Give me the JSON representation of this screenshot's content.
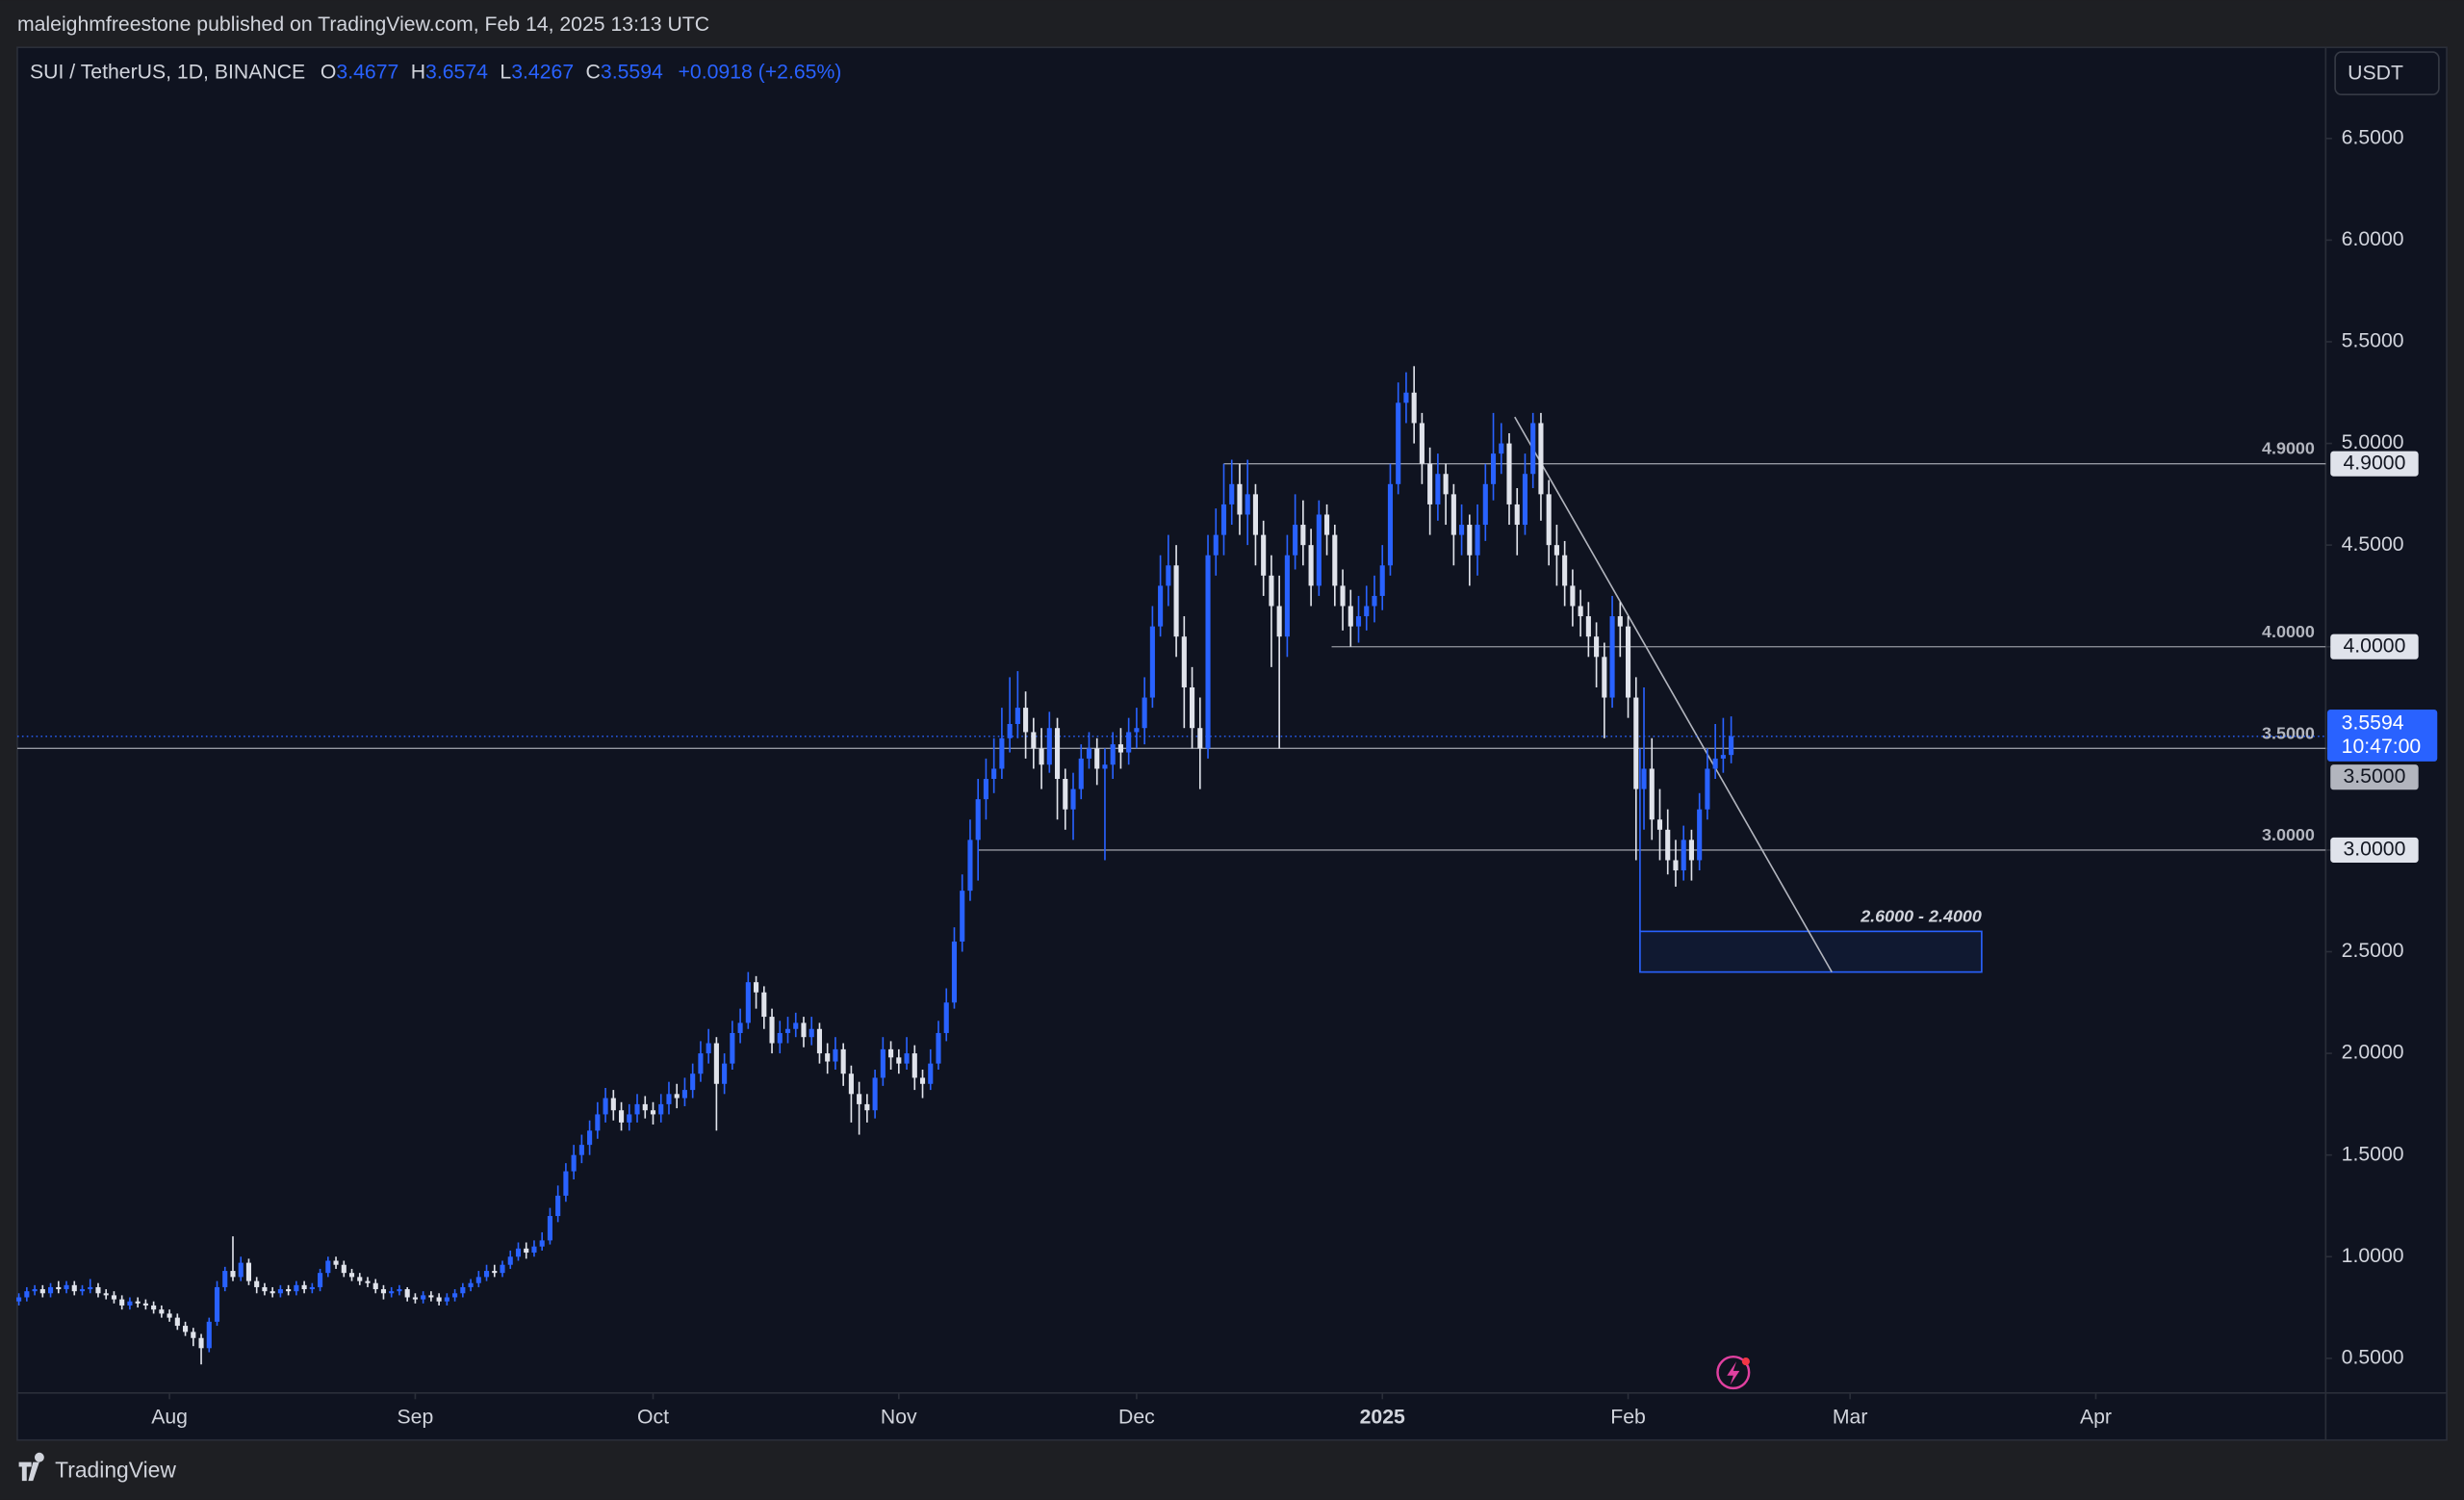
{
  "header": "maleighmfreestone published on TradingView.com, Feb 14, 2025 13:13 UTC",
  "chart_data": {
    "type": "candlestick",
    "symbol": "SUI / TetherUS, 1D, BINANCE",
    "ohlc_labels": [
      "O",
      "H",
      "L",
      "C"
    ],
    "change": "+0.0918 (+2.65%)",
    "currency": "USDT",
    "countdown": "10:47:00",
    "brand": "TradingView",
    "up_color": "#2962ff",
    "down_color": "#e0e3eb",
    "open": [
      0.78,
      0.8,
      0.83,
      0.84,
      0.82,
      0.85,
      0.84,
      0.86,
      0.83,
      0.84,
      0.85,
      0.82,
      0.81,
      0.79,
      0.76,
      0.78,
      0.77,
      0.76,
      0.74,
      0.72,
      0.7,
      0.66,
      0.63,
      0.6,
      0.55,
      0.68,
      0.85,
      0.93,
      0.9,
      0.97,
      0.88,
      0.85,
      0.83,
      0.82,
      0.84,
      0.83,
      0.86,
      0.84,
      0.85,
      0.92,
      0.98,
      0.96,
      0.92,
      0.9,
      0.88,
      0.87,
      0.84,
      0.82,
      0.83,
      0.84,
      0.8,
      0.79,
      0.81,
      0.8,
      0.78,
      0.8,
      0.82,
      0.85,
      0.87,
      0.9,
      0.93,
      0.92,
      0.96,
      1.0,
      1.04,
      1.02,
      1.05,
      1.08,
      1.2,
      1.3,
      1.42,
      1.5,
      1.55,
      1.62,
      1.7,
      1.78,
      1.72,
      1.66,
      1.7,
      1.75,
      1.72,
      1.7,
      1.75,
      1.8,
      1.78,
      1.82,
      1.9,
      2.0,
      2.05,
      1.85,
      1.95,
      2.1,
      2.15,
      2.35,
      2.3,
      2.18,
      2.05,
      2.1,
      2.12,
      2.15,
      2.08,
      2.12,
      2.0,
      1.96,
      2.02,
      1.9,
      1.8,
      1.75,
      1.72,
      1.88,
      2.02,
      1.98,
      1.95,
      2.0,
      1.88,
      1.85,
      1.95,
      2.1,
      2.25,
      2.55,
      2.8,
      3.05,
      3.25,
      3.35,
      3.4,
      3.55,
      3.62,
      3.7,
      3.58,
      3.5,
      3.42,
      3.6,
      3.35,
      3.2,
      3.3,
      3.45,
      3.5,
      3.4,
      3.42,
      3.52,
      3.48,
      3.58,
      3.6,
      3.75,
      4.1,
      4.3,
      4.4,
      4.05,
      3.8,
      3.6,
      3.5,
      4.45,
      4.55,
      4.7,
      4.8,
      4.65,
      4.75,
      4.55,
      4.35,
      4.2,
      4.05,
      4.45,
      4.6,
      4.5,
      4.3,
      4.65,
      4.55,
      4.3,
      4.2,
      4.1,
      4.15,
      4.2,
      4.25,
      4.4,
      4.8,
      5.2,
      5.25,
      5.1,
      4.9,
      4.7,
      4.85,
      4.75,
      4.55,
      4.6,
      4.45,
      4.6,
      4.8,
      4.95,
      5.0,
      4.7,
      4.6,
      4.85,
      5.1,
      4.75,
      4.5,
      4.45,
      4.3,
      4.2,
      4.15,
      4.05,
      3.95,
      3.75,
      4.15,
      4.1,
      3.75,
      3.3,
      3.4,
      3.15,
      3.1,
      2.95,
      2.9,
      3.05,
      2.95,
      3.2,
      3.4,
      3.45,
      3.4677
    ],
    "high": [
      0.82,
      0.85,
      0.86,
      0.86,
      0.87,
      0.88,
      0.88,
      0.88,
      0.86,
      0.89,
      0.87,
      0.84,
      0.83,
      0.81,
      0.8,
      0.8,
      0.79,
      0.78,
      0.76,
      0.74,
      0.72,
      0.68,
      0.65,
      0.62,
      0.7,
      0.88,
      0.95,
      1.1,
      1.0,
      0.99,
      0.9,
      0.87,
      0.85,
      0.86,
      0.86,
      0.88,
      0.88,
      0.87,
      0.94,
      1.0,
      1.0,
      0.98,
      0.94,
      0.92,
      0.9,
      0.89,
      0.86,
      0.85,
      0.86,
      0.85,
      0.82,
      0.83,
      0.83,
      0.82,
      0.82,
      0.84,
      0.87,
      0.89,
      0.93,
      0.96,
      0.96,
      0.98,
      1.03,
      1.07,
      1.07,
      1.08,
      1.12,
      1.24,
      1.35,
      1.46,
      1.55,
      1.6,
      1.67,
      1.76,
      1.83,
      1.82,
      1.76,
      1.75,
      1.8,
      1.79,
      1.76,
      1.8,
      1.86,
      1.85,
      1.88,
      1.95,
      2.06,
      2.12,
      2.08,
      2.0,
      2.16,
      2.22,
      2.4,
      2.38,
      2.33,
      2.22,
      2.16,
      2.18,
      2.2,
      2.18,
      2.18,
      2.15,
      2.05,
      2.08,
      2.05,
      1.94,
      1.86,
      1.8,
      1.92,
      2.08,
      2.06,
      2.02,
      2.08,
      2.04,
      1.92,
      2.02,
      2.16,
      2.32,
      2.62,
      2.88,
      3.15,
      3.35,
      3.45,
      3.55,
      3.7,
      3.85,
      3.88,
      3.78,
      3.65,
      3.6,
      3.68,
      3.65,
      3.4,
      3.38,
      3.52,
      3.58,
      3.55,
      3.5,
      3.58,
      3.6,
      3.65,
      3.7,
      3.85,
      4.2,
      4.45,
      4.55,
      4.5,
      4.15,
      3.9,
      3.75,
      4.55,
      4.68,
      4.9,
      4.92,
      4.9,
      4.92,
      4.8,
      4.62,
      4.45,
      4.35,
      4.55,
      4.75,
      4.72,
      4.58,
      4.72,
      4.7,
      4.6,
      4.38,
      4.28,
      4.25,
      4.3,
      4.35,
      4.5,
      4.9,
      5.3,
      5.35,
      5.38,
      5.15,
      4.98,
      4.95,
      4.9,
      4.8,
      4.7,
      4.65,
      4.7,
      4.9,
      5.15,
      5.1,
      5.05,
      4.78,
      4.95,
      5.15,
      5.15,
      4.82,
      4.6,
      4.52,
      4.38,
      4.28,
      4.22,
      4.12,
      4.02,
      4.25,
      4.22,
      4.15,
      3.85,
      3.8,
      3.55,
      3.3,
      3.2,
      3.05,
      3.12,
      3.1,
      3.28,
      3.5,
      3.62,
      3.65,
      3.6574
    ],
    "low": [
      0.76,
      0.78,
      0.81,
      0.8,
      0.8,
      0.82,
      0.82,
      0.81,
      0.81,
      0.82,
      0.8,
      0.79,
      0.77,
      0.74,
      0.74,
      0.75,
      0.74,
      0.72,
      0.7,
      0.68,
      0.64,
      0.61,
      0.56,
      0.47,
      0.53,
      0.66,
      0.83,
      0.88,
      0.88,
      0.86,
      0.82,
      0.81,
      0.8,
      0.8,
      0.81,
      0.81,
      0.82,
      0.82,
      0.83,
      0.9,
      0.94,
      0.9,
      0.88,
      0.86,
      0.85,
      0.82,
      0.79,
      0.8,
      0.81,
      0.78,
      0.77,
      0.77,
      0.78,
      0.76,
      0.76,
      0.78,
      0.8,
      0.83,
      0.85,
      0.88,
      0.9,
      0.9,
      0.94,
      0.98,
      0.99,
      1.0,
      1.03,
      1.06,
      1.17,
      1.27,
      1.38,
      1.46,
      1.5,
      1.58,
      1.66,
      1.67,
      1.62,
      1.62,
      1.66,
      1.68,
      1.65,
      1.66,
      1.7,
      1.73,
      1.74,
      1.78,
      1.86,
      1.95,
      1.62,
      1.8,
      1.92,
      2.05,
      2.12,
      2.22,
      2.12,
      2.0,
      2.0,
      2.05,
      2.08,
      2.03,
      2.04,
      1.95,
      1.9,
      1.92,
      1.84,
      1.66,
      1.6,
      1.66,
      1.68,
      1.84,
      1.92,
      1.9,
      1.92,
      1.82,
      1.78,
      1.82,
      1.92,
      2.06,
      2.22,
      2.5,
      2.75,
      2.85,
      3.15,
      3.28,
      3.35,
      3.48,
      3.55,
      3.45,
      3.4,
      3.3,
      3.38,
      3.15,
      3.1,
      3.05,
      3.25,
      3.4,
      3.32,
      2.95,
      3.35,
      3.4,
      3.42,
      3.5,
      3.52,
      3.7,
      4.05,
      4.2,
      3.95,
      3.6,
      3.5,
      3.3,
      3.45,
      4.35,
      4.45,
      4.6,
      4.55,
      4.5,
      4.4,
      4.25,
      3.9,
      3.5,
      3.95,
      4.38,
      4.4,
      4.2,
      4.25,
      4.45,
      4.2,
      4.08,
      4.0,
      4.02,
      4.08,
      4.12,
      4.18,
      4.35,
      4.75,
      5.1,
      5.0,
      4.8,
      4.55,
      4.62,
      4.6,
      4.4,
      4.45,
      4.3,
      4.35,
      4.52,
      4.72,
      4.85,
      4.6,
      4.45,
      4.55,
      4.78,
      4.62,
      4.4,
      4.3,
      4.2,
      4.1,
      4.05,
      3.95,
      3.8,
      3.55,
      3.7,
      3.95,
      3.65,
      2.95,
      3.1,
      3.05,
      2.95,
      2.88,
      2.82,
      2.85,
      2.85,
      2.9,
      3.15,
      3.35,
      3.38,
      3.4267
    ],
    "close": [
      0.8,
      0.83,
      0.84,
      0.82,
      0.85,
      0.84,
      0.86,
      0.83,
      0.84,
      0.85,
      0.82,
      0.81,
      0.79,
      0.76,
      0.78,
      0.77,
      0.76,
      0.74,
      0.72,
      0.7,
      0.66,
      0.63,
      0.6,
      0.55,
      0.68,
      0.85,
      0.93,
      0.9,
      0.97,
      0.88,
      0.85,
      0.83,
      0.82,
      0.84,
      0.83,
      0.86,
      0.84,
      0.85,
      0.92,
      0.98,
      0.96,
      0.92,
      0.9,
      0.88,
      0.87,
      0.84,
      0.82,
      0.83,
      0.84,
      0.8,
      0.79,
      0.81,
      0.8,
      0.78,
      0.8,
      0.82,
      0.85,
      0.87,
      0.9,
      0.93,
      0.92,
      0.96,
      1.0,
      1.04,
      1.02,
      1.05,
      1.08,
      1.2,
      1.3,
      1.42,
      1.5,
      1.55,
      1.62,
      1.7,
      1.78,
      1.72,
      1.66,
      1.7,
      1.75,
      1.72,
      1.7,
      1.75,
      1.8,
      1.78,
      1.82,
      1.9,
      2.0,
      2.05,
      1.85,
      1.95,
      2.1,
      2.15,
      2.35,
      2.3,
      2.18,
      2.05,
      2.1,
      2.12,
      2.15,
      2.08,
      2.12,
      2.0,
      1.96,
      2.02,
      1.9,
      1.8,
      1.75,
      1.72,
      1.88,
      2.02,
      1.98,
      1.95,
      2.0,
      1.88,
      1.85,
      1.95,
      2.1,
      2.25,
      2.55,
      2.8,
      3.05,
      3.25,
      3.35,
      3.4,
      3.55,
      3.62,
      3.7,
      3.58,
      3.5,
      3.42,
      3.6,
      3.35,
      3.2,
      3.3,
      3.45,
      3.5,
      3.4,
      3.42,
      3.52,
      3.48,
      3.58,
      3.6,
      3.75,
      4.1,
      4.3,
      4.4,
      4.05,
      3.8,
      3.6,
      3.5,
      4.45,
      4.55,
      4.7,
      4.8,
      4.65,
      4.75,
      4.55,
      4.35,
      4.2,
      4.05,
      4.45,
      4.6,
      4.5,
      4.3,
      4.65,
      4.55,
      4.3,
      4.2,
      4.1,
      4.15,
      4.2,
      4.25,
      4.4,
      4.8,
      5.2,
      5.25,
      5.1,
      4.9,
      4.7,
      4.85,
      4.75,
      4.55,
      4.6,
      4.45,
      4.6,
      4.8,
      4.95,
      5.0,
      4.7,
      4.6,
      4.85,
      5.1,
      4.75,
      4.5,
      4.45,
      4.3,
      4.2,
      4.15,
      4.05,
      3.95,
      3.75,
      4.15,
      4.1,
      3.75,
      3.3,
      3.4,
      3.15,
      3.1,
      2.95,
      2.9,
      3.05,
      2.95,
      3.2,
      3.4,
      3.45,
      3.4677,
      3.5594
    ],
    "xlim": [
      -0.2,
      291
    ],
    "xticks": [
      {
        "value": 19,
        "label": "Aug"
      },
      {
        "value": 50,
        "label": "Sep"
      },
      {
        "value": 80,
        "label": "Oct"
      },
      {
        "value": 111,
        "label": "Nov"
      },
      {
        "value": 141,
        "label": "Dec"
      },
      {
        "value": 172,
        "label": "2025"
      },
      {
        "value": 203,
        "label": "Feb"
      },
      {
        "value": 231,
        "label": "Mar"
      },
      {
        "value": 262,
        "label": "Apr"
      }
    ],
    "ylim": [
      0.33,
      6.948
    ],
    "yticks": [
      {
        "value": 0.5,
        "label": "0.5000"
      },
      {
        "value": 1,
        "label": "1.0000"
      },
      {
        "value": 1.5,
        "label": "1.5000"
      },
      {
        "value": 2,
        "label": "2.0000"
      },
      {
        "value": 2.5,
        "label": "2.5000"
      },
      {
        "value": 3,
        "label": "3.0000"
      },
      {
        "value": 3.5,
        "label": "3.5000"
      },
      {
        "value": 4,
        "label": "4.0000"
      },
      {
        "value": 4.5,
        "label": "4.5000"
      },
      {
        "value": 5,
        "label": "5.0000"
      },
      {
        "value": 5.5,
        "label": "5.5000"
      },
      {
        "value": 6,
        "label": "6.0000"
      },
      {
        "value": 6.5,
        "label": "6.5000"
      }
    ],
    "levels": [
      {
        "value": 4.9,
        "label": "4.9000"
      },
      {
        "value": 4,
        "label": "4.0000"
      },
      {
        "value": 3.5,
        "label": "3.5000"
      },
      {
        "value": 3,
        "label": "3.0000"
      }
    ],
    "zone": {
      "label": "2.6000 - 2.4000",
      "top": 2.6,
      "bottom": 2.4
    },
    "trendline": {
      "y": [
        5.13,
        2.4
      ]
    }
  }
}
